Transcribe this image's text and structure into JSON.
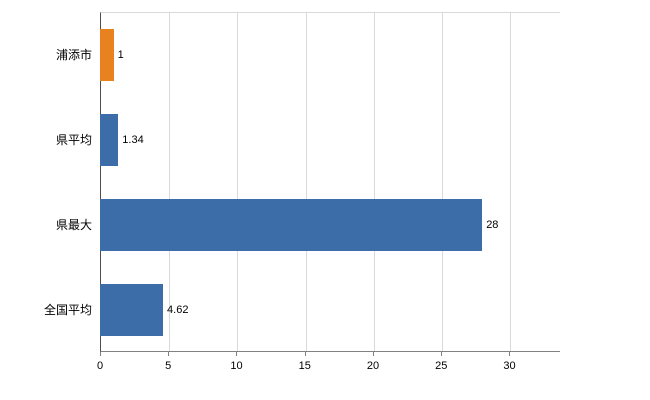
{
  "chart": {
    "background_color": "#ffffff",
    "grid_color": "#d9d9d9",
    "axis_line_color": "#4d4d4d",
    "baseline_color": "#808080",
    "text_color": "#000000"
  },
  "chart_data": {
    "type": "bar",
    "orientation": "horizontal",
    "title": "",
    "categories": [
      "浦添市",
      "県平均",
      "県最大",
      "全国平均"
    ],
    "values": [
      1,
      1.34,
      28,
      4.62
    ],
    "value_labels": [
      "1",
      "1.34",
      "28",
      "4.62"
    ],
    "bar_colors": [
      "#e8821e",
      "#3c6da8",
      "#3c6da8",
      "#3c6da8"
    ],
    "xlim": [
      0,
      33.7
    ],
    "xticks": [
      0,
      5,
      10,
      15,
      20,
      25,
      30
    ],
    "grid": true,
    "legend_position": "none",
    "xlabel": "",
    "ylabel": ""
  }
}
